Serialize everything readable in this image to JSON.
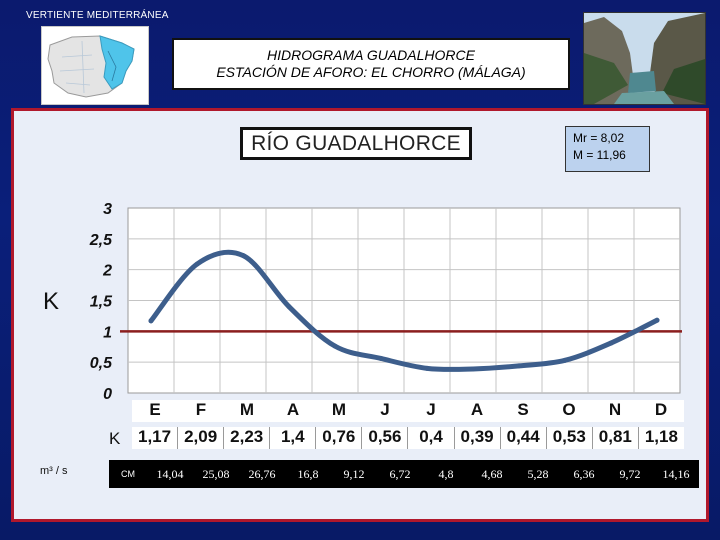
{
  "header": {
    "region_label": "VERTIENTE  MEDITERRÁNEA",
    "title_line1": "HIDROGRAMA  GUADALHORCE",
    "title_line2": "ESTACIÓN DE AFORO:  EL CHORRO (MÁLAGA)"
  },
  "chart_box": {
    "river_name": "RÍO GUADALHORCE",
    "stat_mr": "Mr = 8,02",
    "stat_m": "M = 11,96",
    "k_axis_label": "K",
    "table_k_label": "K",
    "flow_unit": "m³ / s",
    "flow_row_label": "CM"
  },
  "colors": {
    "background": "#0b1a6e",
    "frame_border": "#b0182c",
    "line": "#3d5e8c",
    "reference_line": "#8b1e1e",
    "stats_box": "#bcd2ee"
  },
  "chart_data": {
    "type": "line",
    "title": "RÍO GUADALHORCE",
    "ylabel": "K",
    "categories": [
      "E",
      "F",
      "M",
      "A",
      "M",
      "J",
      "J",
      "A",
      "S",
      "O",
      "N",
      "D"
    ],
    "values": [
      1.17,
      2.09,
      2.23,
      1.4,
      0.76,
      0.56,
      0.4,
      0.39,
      0.44,
      0.53,
      0.81,
      1.18
    ],
    "value_labels": [
      "1,17",
      "2,09",
      "2,23",
      "1,4",
      "0,76",
      "0,56",
      "0,4",
      "0,39",
      "0,44",
      "0,53",
      "0,81",
      "1,18"
    ],
    "flow_labels": [
      "14,04",
      "25,08",
      "26,76",
      "16,8",
      "9,12",
      "6,72",
      "4,8",
      "4,68",
      "5,28",
      "6,36",
      "9,72",
      "14,16"
    ],
    "ylim": [
      0,
      3
    ],
    "yticks": [
      0,
      0.5,
      1,
      1.5,
      2,
      2.5,
      3
    ],
    "ytick_labels": [
      "0",
      "0,5",
      "1",
      "1,5",
      "2",
      "2,5",
      "3"
    ],
    "reference_line": 1,
    "grid": true
  }
}
